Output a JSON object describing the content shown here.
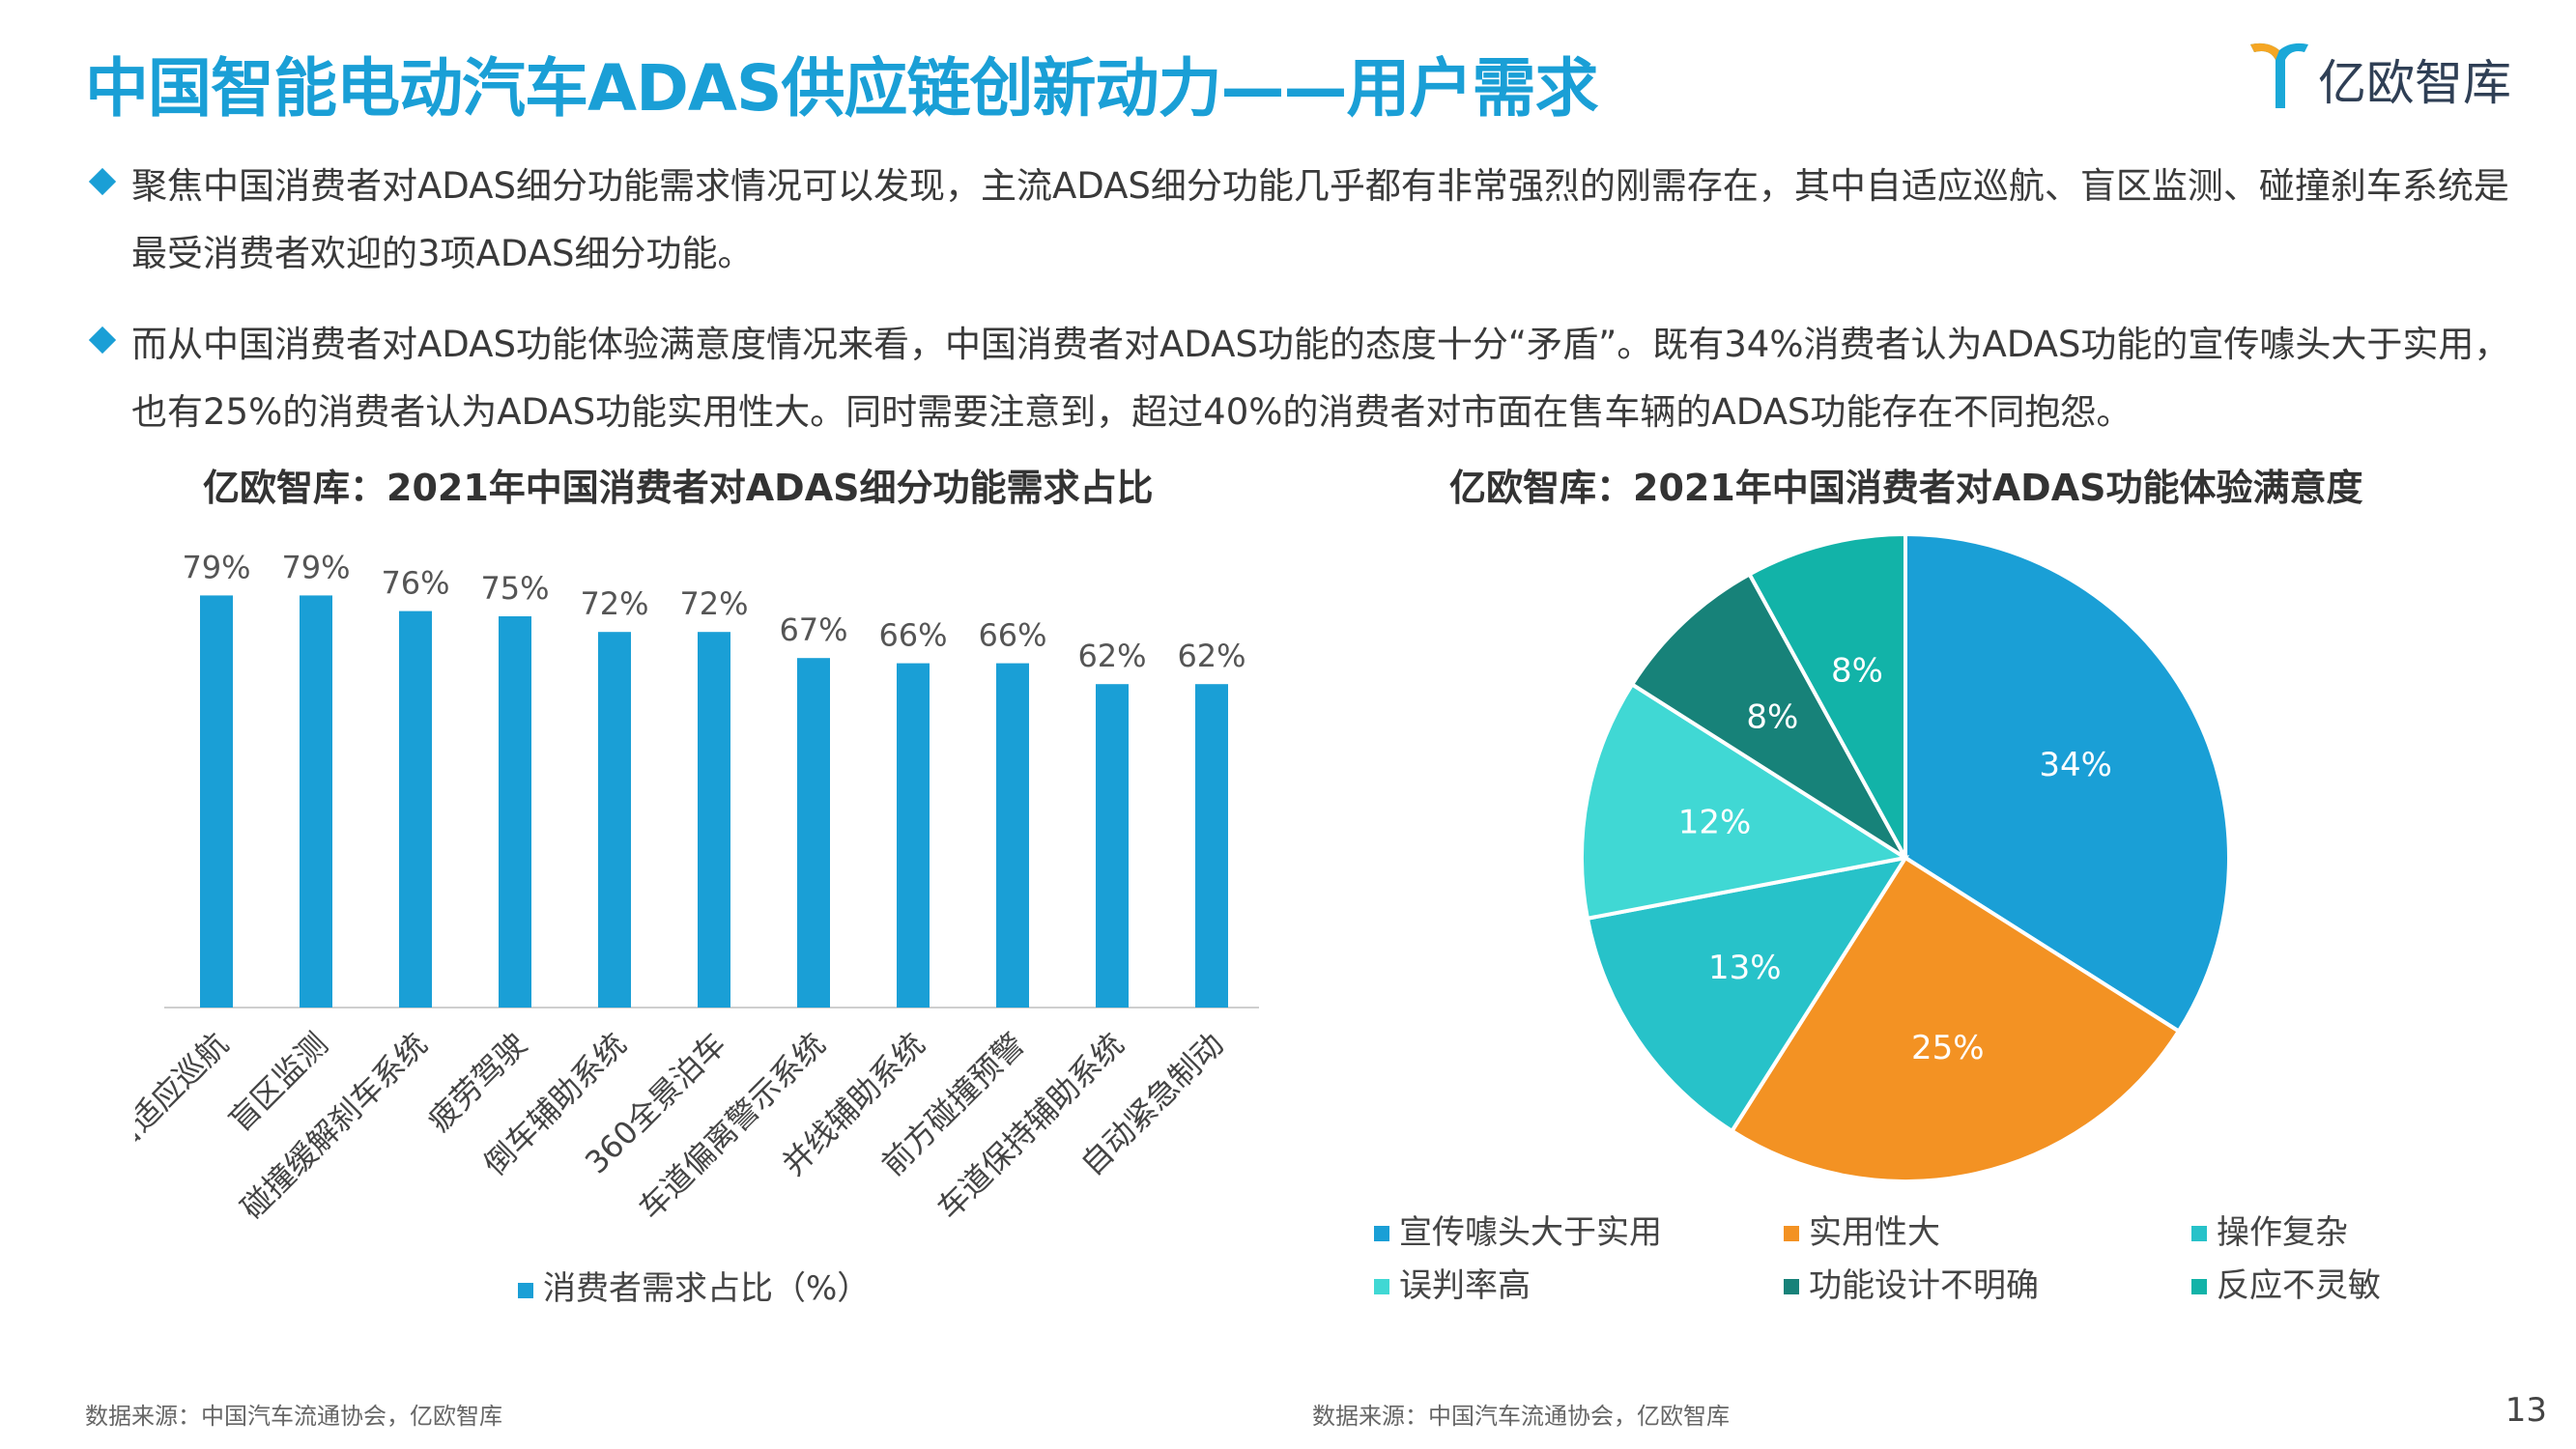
{
  "header": {
    "title": "中国智能电动汽车ADAS供应链创新动力——用户需求",
    "logo_text": "亿欧智库"
  },
  "bullets": [
    "聚焦中国消费者对ADAS细分功能需求情况可以发现，主流ADAS细分功能几乎都有非常强烈的刚需存在，其中自适应巡航、盲区监测、碰撞刹车系统是最受消费者欢迎的3项ADAS细分功能。",
    "而从中国消费者对ADAS功能体验满意度情况来看，中国消费者对ADAS功能的态度十分“矛盾”。既有34%消费者认为ADAS功能的宣传噱头大于实用，也有25%的消费者认为ADAS功能实用性大。同时需要注意到，超过40%的消费者对市面在售车辆的ADAS功能存在不同抱怨。"
  ],
  "chart_data": [
    {
      "type": "bar",
      "title": "亿欧智库：2021年中国消费者对ADAS细分功能需求占比",
      "categories": [
        "自适应巡航",
        "盲区监测",
        "碰撞缓解刹车系统",
        "疲劳驾驶",
        "倒车辅助系统",
        "360全景泊车",
        "车道偏离警示系统",
        "并线辅助系统",
        "前方碰撞预警",
        "车道保持辅助系统",
        "自动紧急制动"
      ],
      "series": [
        {
          "name": "消费者需求占比（%）",
          "values": [
            79,
            79,
            76,
            75,
            72,
            72,
            67,
            66,
            66,
            62,
            62
          ]
        }
      ],
      "data_labels": [
        "79%",
        "79%",
        "76%",
        "75%",
        "72%",
        "72%",
        "67%",
        "66%",
        "66%",
        "62%",
        "62%"
      ],
      "ylim": [
        0,
        100
      ],
      "color": "#1a9fd6",
      "legend": "bottom"
    },
    {
      "type": "pie",
      "title": "亿欧智库：2021年中国消费者对ADAS功能体验满意度",
      "slices": [
        {
          "label": "宣传噱头大于实用",
          "value": 34,
          "display": "34%",
          "color": "#1a9fd6"
        },
        {
          "label": "实用性大",
          "value": 25,
          "display": "25%",
          "color": "#f39223"
        },
        {
          "label": "操作复杂",
          "value": 13,
          "display": "13%",
          "color": "#27c2c9"
        },
        {
          "label": "误判率高",
          "value": 12,
          "display": "12%",
          "color": "#40d8d4"
        },
        {
          "label": "功能设计不明确",
          "value": 8,
          "display": "8%",
          "color": "#178279"
        },
        {
          "label": "反应不灵敏",
          "value": 8,
          "display": "8%",
          "color": "#12b3a8"
        }
      ],
      "legend": "bottom"
    }
  ],
  "footer": {
    "source_left": "数据来源：中国汽车流通协会，亿欧智库",
    "source_right": "数据来源：中国汽车流通协会，亿欧智库",
    "page_number": "13"
  }
}
